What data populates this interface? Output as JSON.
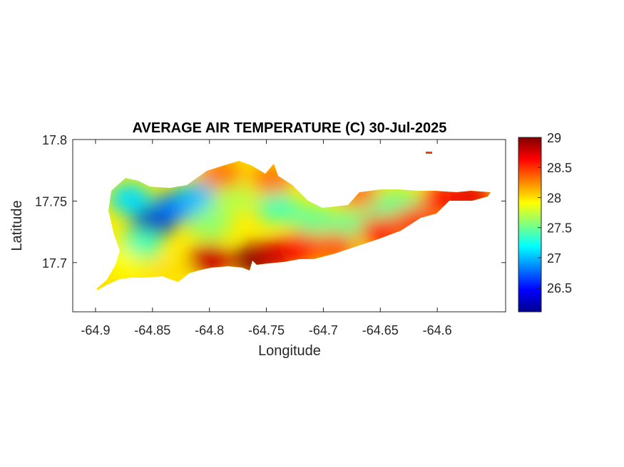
{
  "title": "AVERAGE AIR TEMPERATURE (C) 30-Jul-2025",
  "axes": {
    "xlabel": "Longitude",
    "ylabel": "Latitude",
    "xlim": [
      -64.92,
      -64.54
    ],
    "ylim": [
      17.66,
      17.8
    ],
    "xticks": [
      "-64.9",
      "-64.85",
      "-64.8",
      "-64.75",
      "-64.7",
      "-64.65",
      "-64.6"
    ],
    "yticks": [
      "17.8",
      "17.75",
      "17.7"
    ],
    "box": true,
    "grid": false
  },
  "colorbar": {
    "range": [
      26.1,
      29.0
    ],
    "ticks": [
      "29",
      "28.5",
      "28",
      "27.5",
      "27",
      "26.5"
    ],
    "colormap": "jet",
    "colors": [
      "#00008f",
      "#0000ff",
      "#00ffff",
      "#ffff00",
      "#ff0000",
      "#800000"
    ]
  },
  "chart_data": {
    "type": "heatmap",
    "variable": "AVERAGE AIR TEMPERATURE (C)",
    "date": "30-Jul-2025",
    "samples": [
      {
        "lon": -64.85,
        "lat": 17.732,
        "value": 26.2
      },
      {
        "lon": -64.83,
        "lat": 17.745,
        "value": 26.8
      },
      {
        "lon": -64.81,
        "lat": 17.754,
        "value": 27.0
      },
      {
        "lon": -64.87,
        "lat": 17.752,
        "value": 27.1
      },
      {
        "lon": -64.86,
        "lat": 17.715,
        "value": 27.4
      },
      {
        "lon": -64.8,
        "lat": 17.732,
        "value": 27.6
      },
      {
        "lon": -64.78,
        "lat": 17.752,
        "value": 27.7
      },
      {
        "lon": -64.74,
        "lat": 17.745,
        "value": 27.4
      },
      {
        "lon": -64.71,
        "lat": 17.735,
        "value": 27.5
      },
      {
        "lon": -64.68,
        "lat": 17.73,
        "value": 27.5
      },
      {
        "lon": -64.65,
        "lat": 17.746,
        "value": 27.5
      },
      {
        "lon": -64.63,
        "lat": 17.746,
        "value": 27.5
      },
      {
        "lon": -64.88,
        "lat": 17.7,
        "value": 27.9
      },
      {
        "lon": -64.895,
        "lat": 17.682,
        "value": 28.0
      },
      {
        "lon": -64.835,
        "lat": 17.692,
        "value": 28.0
      },
      {
        "lon": -64.79,
        "lat": 17.772,
        "value": 28.3
      },
      {
        "lon": -64.745,
        "lat": 17.768,
        "value": 28.3
      },
      {
        "lon": -64.8,
        "lat": 17.702,
        "value": 28.8
      },
      {
        "lon": -64.76,
        "lat": 17.702,
        "value": 29.0
      },
      {
        "lon": -64.74,
        "lat": 17.706,
        "value": 28.8
      },
      {
        "lon": -64.72,
        "lat": 17.712,
        "value": 28.6
      },
      {
        "lon": -64.69,
        "lat": 17.712,
        "value": 28.4
      },
      {
        "lon": -64.67,
        "lat": 17.757,
        "value": 28.3
      },
      {
        "lon": -64.65,
        "lat": 17.725,
        "value": 28.6
      },
      {
        "lon": -64.62,
        "lat": 17.733,
        "value": 28.5
      },
      {
        "lon": -64.595,
        "lat": 17.752,
        "value": 28.6
      },
      {
        "lon": -64.57,
        "lat": 17.754,
        "value": 28.7
      }
    ]
  }
}
